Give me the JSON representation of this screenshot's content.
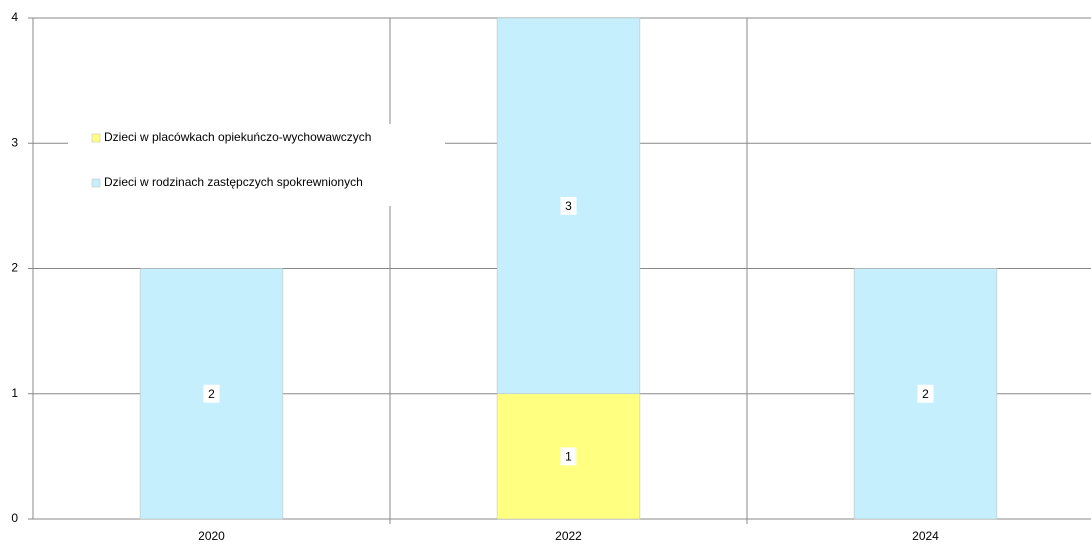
{
  "chart_data": {
    "type": "bar",
    "stacked": true,
    "categories": [
      "2020",
      "2022",
      "2024"
    ],
    "series": [
      {
        "name": "Dzieci w placówkach opiekuńczo-wychowawczych",
        "color": "#ffff80",
        "values": [
          0,
          1,
          0
        ]
      },
      {
        "name": "Dzieci w rodzinach zastępczych spokrewnionych",
        "color": "#c5effd",
        "values": [
          2,
          3,
          2
        ]
      }
    ],
    "ylim": [
      0,
      4
    ],
    "yticks": [
      0,
      1,
      2,
      3,
      4
    ],
    "grid": true,
    "legend": "upper left"
  }
}
